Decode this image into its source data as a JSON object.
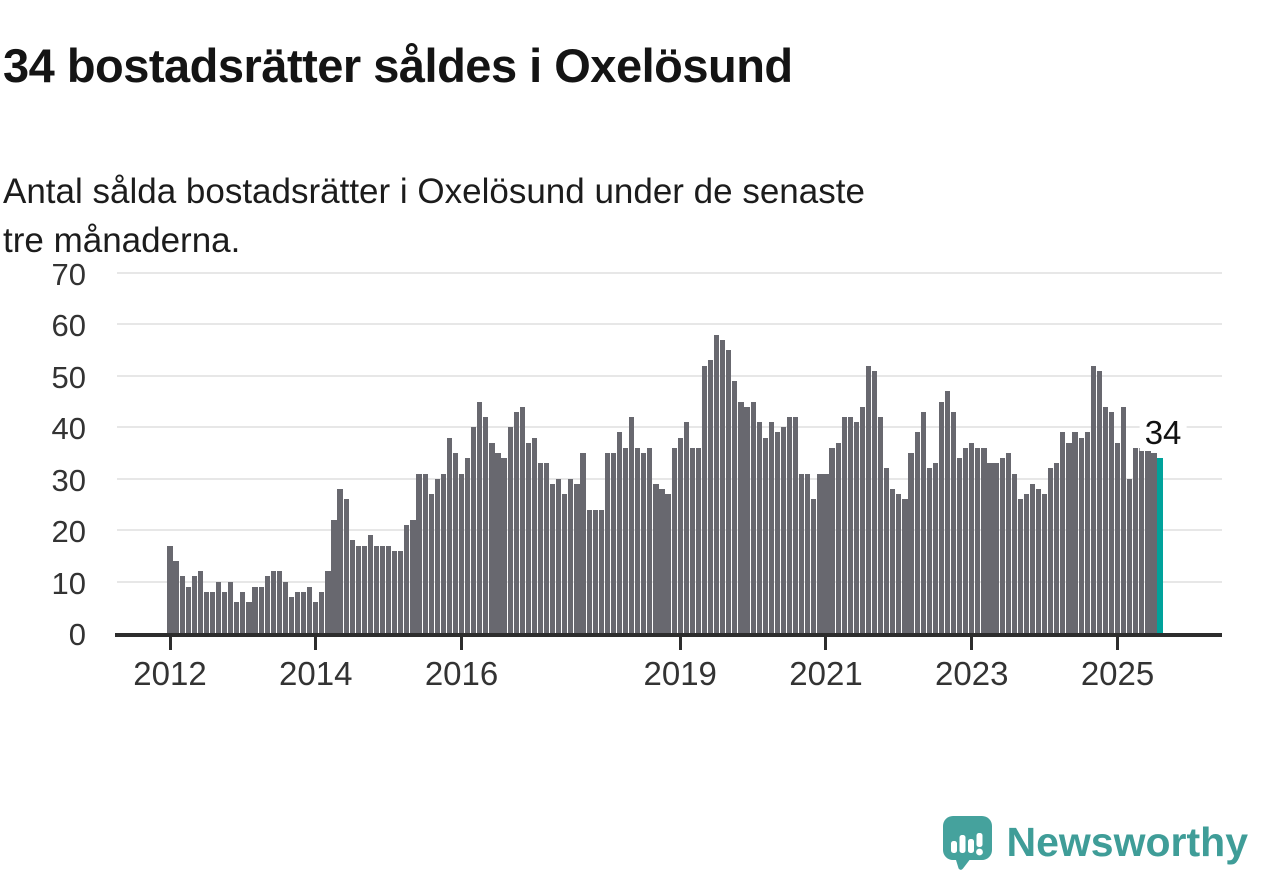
{
  "header": {
    "title": "34 bostadsrätter såldes i Oxelösund",
    "subtitle_lines": [
      "Antal sålda bostadsrätter i Oxelösund under de senaste",
      "tre månaderna."
    ]
  },
  "chart_data": {
    "type": "bar",
    "title": "34 bostadsrätter såldes i Oxelösund",
    "subtitle": "Antal sålda bostadsrätter i Oxelösund under de senaste tre månaderna.",
    "x_start": "2012-01",
    "x_end": "2025-08",
    "frequency": "monthly-rolling-3-month-total",
    "values": [
      17,
      14,
      11,
      9,
      11,
      12,
      8,
      8,
      10,
      8,
      10,
      6,
      8,
      6,
      9,
      9,
      11,
      12,
      12,
      10,
      7,
      8,
      8,
      9,
      6,
      8,
      12,
      22,
      28,
      26,
      18,
      17,
      17,
      19,
      17,
      17,
      17,
      16,
      16,
      21,
      22,
      31,
      31,
      27,
      30,
      31,
      38,
      35,
      31,
      34,
      40,
      45,
      42,
      37,
      35,
      34,
      40,
      43,
      44,
      37,
      38,
      33,
      33,
      29,
      30,
      27,
      30,
      29,
      35,
      24,
      24,
      24,
      35,
      35,
      39,
      36,
      42,
      36,
      35,
      36,
      29,
      28,
      27,
      36,
      38,
      41,
      36,
      36,
      52,
      53,
      58,
      57,
      55,
      49,
      45,
      44,
      45,
      41,
      38,
      41,
      39,
      40,
      42,
      42,
      31,
      31,
      26,
      31,
      31,
      36,
      37,
      42,
      42,
      41,
      44,
      52,
      51,
      42,
      32,
      28,
      27,
      26,
      35,
      39,
      43,
      32,
      33,
      45,
      47,
      43,
      34,
      36,
      37,
      36,
      36,
      33,
      33,
      34,
      35,
      31,
      26,
      27,
      29,
      28,
      27,
      32,
      33,
      39,
      37,
      39,
      38,
      39,
      52,
      51,
      44,
      43,
      37,
      44,
      30,
      36,
      36,
      37,
      35,
      34
    ],
    "highlight": {
      "index": 163,
      "value": 34,
      "label": "34",
      "color": "#00a29b"
    },
    "ylim": [
      0,
      70
    ],
    "yticks": [
      0,
      10,
      20,
      30,
      40,
      50,
      60,
      70
    ],
    "xticks": [
      {
        "label": "2012",
        "month_index": 0
      },
      {
        "label": "2014",
        "month_index": 24
      },
      {
        "label": "2016",
        "month_index": 48
      },
      {
        "label": "2019",
        "month_index": 84
      },
      {
        "label": "2021",
        "month_index": 108
      },
      {
        "label": "2023",
        "month_index": 132
      },
      {
        "label": "2025",
        "month_index": 156
      }
    ],
    "grid": true,
    "legend": "none",
    "colors": {
      "bar": "#68686f",
      "highlight": "#00a29b",
      "gridline": "#e7e7e7",
      "axis": "#2d2d2d",
      "tick_label": "#333333",
      "annotation": "#111111"
    }
  },
  "logo": {
    "text": "Newsworthy",
    "icon": "newsworthy-speech-bubble-bar-chart-icon",
    "text_color": "#3f9d98",
    "icon_color": "#45a29d"
  }
}
